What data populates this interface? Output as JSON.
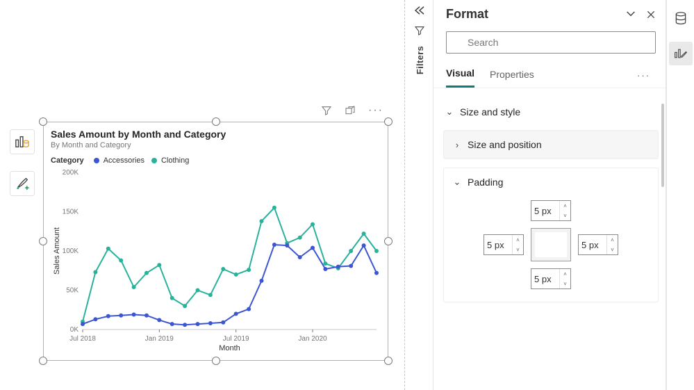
{
  "canvas": {
    "toolbar": {
      "buildBtn": "build-visual-button",
      "formatBtn": "format-visual-button"
    },
    "visualActions": {
      "filter": "filter-icon",
      "focus": "focus-mode-icon",
      "more": "more-options-icon"
    }
  },
  "visual": {
    "title": "Sales Amount by Month and Category",
    "subtitle": "By Month and Category",
    "legendTitle": "Category",
    "series": [
      {
        "name": "Accessories",
        "color": "#3b56d3"
      },
      {
        "name": "Clothing",
        "color": "#28b29a"
      }
    ],
    "yAxisLabel": "Sales Amount",
    "xAxisLabel": "Month",
    "yTicks": [
      {
        "v": 0,
        "label": "0K"
      },
      {
        "v": 50000,
        "label": "50K"
      },
      {
        "v": 100000,
        "label": "100K"
      },
      {
        "v": 150000,
        "label": "150K"
      },
      {
        "v": 200000,
        "label": "200K"
      }
    ],
    "yMax": 200000,
    "xLabels": [
      "Jul 2018",
      "Jan 2019",
      "Jul 2019",
      "Jan 2020"
    ],
    "xLabelIdx": [
      0,
      6,
      12,
      18
    ],
    "pointCount": 24,
    "data": {
      "accessories": [
        7000,
        13000,
        17000,
        18000,
        19000,
        18000,
        12000,
        7000,
        6000,
        7000,
        8000,
        9000,
        20000,
        26000,
        62000,
        108000,
        107000,
        92000,
        104000,
        77000,
        80000,
        81000,
        107000,
        72000
      ],
      "clothing": [
        10000,
        73000,
        103000,
        88000,
        54000,
        72000,
        82000,
        40000,
        30000,
        50000,
        44000,
        77000,
        70000,
        76000,
        138000,
        155000,
        110000,
        117000,
        134000,
        84000,
        78000,
        100000,
        122000,
        100000
      ]
    },
    "plot": {
      "background": "#ffffff",
      "tick_color": "#767676",
      "axis_color": "#c8c8c8",
      "tick_fontsize": 10,
      "axis_title_fontsize": 11,
      "line_width": 2,
      "marker_radius": 3
    }
  },
  "filtersPane": {
    "label": "Filters"
  },
  "formatPanel": {
    "title": "Format",
    "searchPlaceholder": "Search",
    "tabs": {
      "visual": "Visual",
      "properties": "Properties"
    },
    "sections": {
      "sizeStyle": "Size and style",
      "sizePosition": "Size and position",
      "padding": "Padding"
    },
    "padding": {
      "top": "5 px",
      "left": "5 px",
      "right": "5 px",
      "bottom": "5 px"
    }
  }
}
